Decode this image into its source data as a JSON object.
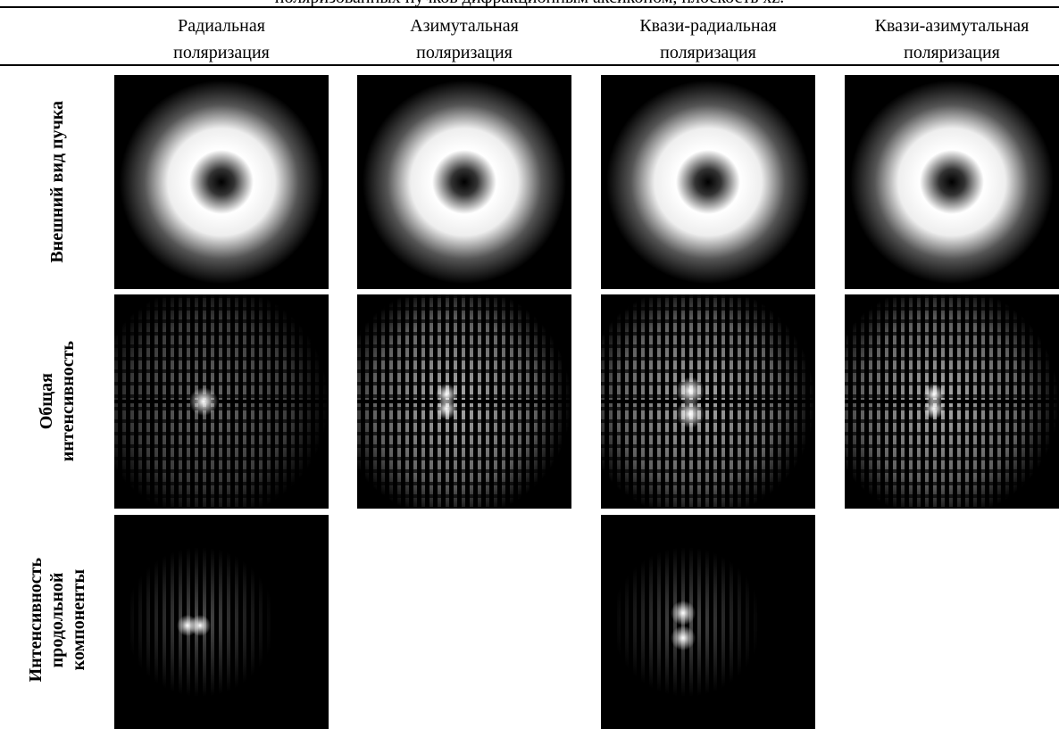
{
  "caption": "поляризованных пучков дифракционным аксиконом, плоскость xz.",
  "table": {
    "header": [
      {
        "lines": [
          "Радиальная",
          "поляризация"
        ]
      },
      {
        "lines": [
          "Азимутальная",
          "поляризация"
        ]
      },
      {
        "lines": [
          "Квази-радиальная",
          "поляризация"
        ]
      },
      {
        "lines": [
          "Квази-азимутальная",
          "поляризация"
        ]
      }
    ],
    "rows": [
      {
        "lines": [
          "Внешний вид пучка"
        ]
      },
      {
        "lines": [
          "Общая",
          "интенсивность"
        ]
      },
      {
        "lines": [
          "Интенсивность",
          "продольной",
          "компоненты"
        ]
      }
    ]
  }
}
